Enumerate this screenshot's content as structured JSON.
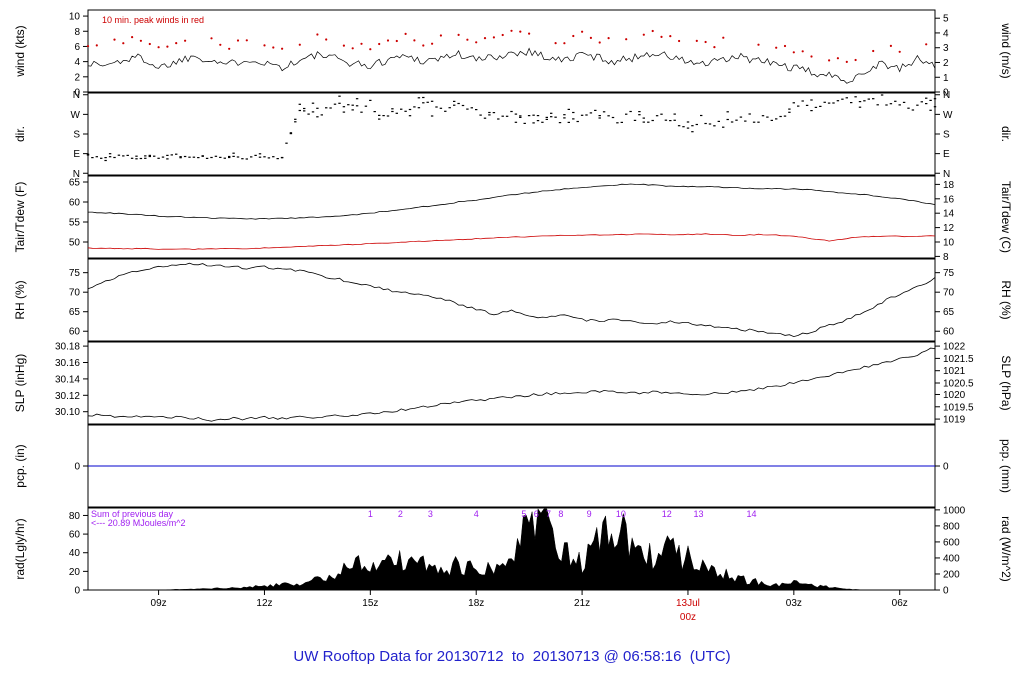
{
  "title": "UW Rooftop Data for 20130712  to  20130713 @ 06:58:16  (UTC)",
  "colors": {
    "title": "#2222cc",
    "red": "#cc0000",
    "purple": "#a020f0",
    "blue": "#0000cc",
    "black": "#000000"
  },
  "x_axis": {
    "domain_hours": [
      0,
      24
    ],
    "ticks": [
      {
        "t": 2,
        "l": "09z"
      },
      {
        "t": 5,
        "l": "12z"
      },
      {
        "t": 8,
        "l": "15z"
      },
      {
        "t": 11,
        "l": "18z"
      },
      {
        "t": 14,
        "l": "21z"
      },
      {
        "t": 17,
        "l": "13Jul",
        "l2": "00z",
        "color": "#cc0000"
      },
      {
        "t": 20,
        "l": "03z"
      },
      {
        "t": 23,
        "l": "06z"
      }
    ]
  },
  "chart_data": [
    {
      "id": "wind",
      "type": "line",
      "left_label": "wind (kts)",
      "right_label": "wind (m/s)",
      "y_domain": [
        0,
        10.8
      ],
      "left_ticks": [
        {
          "v": 0,
          "l": "0"
        },
        {
          "v": 2,
          "l": "2"
        },
        {
          "v": 4,
          "l": "4"
        },
        {
          "v": 6,
          "l": "6"
        },
        {
          "v": 8,
          "l": "8"
        },
        {
          "v": 10,
          "l": "10"
        }
      ],
      "right_ticks": [
        {
          "v": 0,
          "l": "0"
        },
        {
          "v": 1.94,
          "l": "1"
        },
        {
          "v": 3.89,
          "l": "2"
        },
        {
          "v": 5.83,
          "l": "3"
        },
        {
          "v": 7.78,
          "l": "4"
        },
        {
          "v": 9.72,
          "l": "5"
        }
      ],
      "note": {
        "text": "10 min. peak winds in red",
        "color": "#cc0000"
      },
      "series": [
        {
          "name": "wind-speed",
          "color": "#000000",
          "step_hours": 0.5,
          "values": [
            3.8,
            3.5,
            4.2,
            4.6,
            3.2,
            4.0,
            4.8,
            4.2,
            3.6,
            4.4,
            3.9,
            3.3,
            4.1,
            4.9,
            4.4,
            3.8,
            3.4,
            4.3,
            4.8,
            4.1,
            4.5,
            5.0,
            4.2,
            4.6,
            5.1,
            5.4,
            4.6,
            4.1,
            5.0,
            4.5,
            4.0,
            4.6,
            5.2,
            4.6,
            4.0,
            3.6,
            4.2,
            4.6,
            4.1,
            3.7,
            3.1,
            2.6,
            2.1,
            1.6,
            2.6,
            3.9,
            2.9,
            4.4,
            3.4
          ]
        }
      ],
      "peaks": {
        "name": "peak-winds",
        "color": "#cc0000",
        "step_hours": 0.5,
        "values": [
          6.2,
          6.0,
          6.8,
          7.1,
          5.6,
          6.5,
          7.3,
          6.7,
          6.0,
          6.9,
          6.3,
          5.8,
          6.6,
          7.4,
          6.9,
          6.2,
          5.9,
          6.8,
          7.3,
          6.6,
          7.0,
          7.6,
          6.7,
          7.1,
          7.7,
          8.1,
          7.1,
          6.6,
          7.6,
          7.0,
          6.5,
          7.1,
          7.8,
          7.1,
          6.5,
          6.1,
          6.7,
          7.1,
          6.6,
          6.2,
          5.5,
          5.0,
          4.4,
          3.9,
          5.1,
          6.4,
          5.4,
          7.0,
          5.9
        ]
      }
    },
    {
      "id": "dir",
      "type": "scatter",
      "left_label": "dir.",
      "right_label": "dir.",
      "y_domain": [
        -8,
        368
      ],
      "left_ticks": [
        {
          "v": 0,
          "l": "N"
        },
        {
          "v": 90,
          "l": "E"
        },
        {
          "v": 180,
          "l": "S"
        },
        {
          "v": 270,
          "l": "W"
        },
        {
          "v": 360,
          "l": "N"
        }
      ],
      "right_ticks": [
        {
          "v": 0,
          "l": "N"
        },
        {
          "v": 90,
          "l": "E"
        },
        {
          "v": 180,
          "l": "S"
        },
        {
          "v": 270,
          "l": "W"
        },
        {
          "v": 360,
          "l": "N"
        }
      ],
      "series": [
        {
          "name": "wind-direction",
          "color": "#000000",
          "step_hours": 0.5,
          "values": [
            80,
            74,
            78,
            72,
            76,
            80,
            75,
            70,
            77,
            73,
            79,
            75,
            300,
            280,
            320,
            290,
            310,
            270,
            300,
            330,
            285,
            305,
            270,
            255,
            265,
            250,
            260,
            245,
            255,
            265,
            250,
            260,
            240,
            250,
            230,
            245,
            235,
            255,
            240,
            250,
            310,
            330,
            320,
            340,
            315,
            335,
            300,
            320,
            330
          ]
        }
      ]
    },
    {
      "id": "temp",
      "type": "line",
      "left_label": "Tair/Tdew (F)",
      "right_label": "Tair/Tdew (C)",
      "y_domain": [
        46,
        66.5
      ],
      "left_ticks": [
        {
          "v": 50,
          "l": "50"
        },
        {
          "v": 55,
          "l": "55"
        },
        {
          "v": 60,
          "l": "60"
        },
        {
          "v": 65,
          "l": "65"
        }
      ],
      "right_ticks": [
        {
          "v": 46.4,
          "l": "8"
        },
        {
          "v": 50,
          "l": "10"
        },
        {
          "v": 53.6,
          "l": "12"
        },
        {
          "v": 57.2,
          "l": "14"
        },
        {
          "v": 60.8,
          "l": "16"
        },
        {
          "v": 64.4,
          "l": "18"
        }
      ],
      "series": [
        {
          "name": "air-temperature",
          "color": "#000000",
          "step_hours": 0.5,
          "values": [
            57.5,
            57.3,
            57.0,
            56.8,
            56.5,
            56.3,
            56.2,
            56.0,
            55.9,
            55.8,
            55.8,
            55.9,
            56.0,
            56.2,
            56.5,
            56.8,
            57.2,
            57.8,
            58.3,
            58.8,
            59.4,
            60.0,
            60.5,
            61.2,
            61.8,
            62.3,
            62.8,
            63.2,
            63.6,
            64.0,
            64.3,
            64.5,
            64.2,
            64.0,
            63.8,
            63.9,
            63.7,
            63.5,
            63.4,
            63.3,
            63.2,
            63.0,
            62.6,
            62.2,
            61.8,
            61.3,
            60.8,
            60.2,
            59.3
          ]
        },
        {
          "name": "dew-point",
          "color": "#cc0000",
          "step_hours": 0.5,
          "values": [
            48.5,
            48.4,
            48.3,
            48.4,
            48.2,
            48.3,
            48.2,
            48.3,
            48.4,
            48.3,
            48.5,
            48.6,
            48.8,
            49.0,
            49.2,
            49.4,
            49.6,
            49.8,
            50.0,
            50.2,
            50.4,
            50.6,
            50.8,
            51.0,
            51.2,
            51.3,
            51.5,
            51.6,
            51.7,
            51.8,
            51.8,
            51.9,
            52.0,
            51.8,
            51.9,
            52.0,
            51.8,
            51.6,
            51.9,
            51.7,
            51.5,
            50.8,
            50.3,
            50.9,
            51.3,
            51.5,
            51.4,
            51.5,
            51.6
          ]
        }
      ]
    },
    {
      "id": "rh",
      "type": "line",
      "left_label": "RH (%)",
      "right_label": "RH (%)",
      "y_domain": [
        57.5,
        78.5
      ],
      "left_ticks": [
        {
          "v": 60,
          "l": "60"
        },
        {
          "v": 65,
          "l": "65"
        },
        {
          "v": 70,
          "l": "70"
        },
        {
          "v": 75,
          "l": "75"
        }
      ],
      "right_ticks": [
        {
          "v": 60,
          "l": "60"
        },
        {
          "v": 65,
          "l": "65"
        },
        {
          "v": 70,
          "l": "70"
        },
        {
          "v": 75,
          "l": "75"
        }
      ],
      "series": [
        {
          "name": "relative-humidity",
          "color": "#000000",
          "step_hours": 0.5,
          "values": [
            71.0,
            73.0,
            74.5,
            75.5,
            76.5,
            77.0,
            77.2,
            76.8,
            76.5,
            76.2,
            76.5,
            76.0,
            75.5,
            74.5,
            73.5,
            72.5,
            71.5,
            70.5,
            70.0,
            69.5,
            68.5,
            67.0,
            65.5,
            64.5,
            65.5,
            64.0,
            63.5,
            64.5,
            63.0,
            62.5,
            63.0,
            62.5,
            62.0,
            62.5,
            62.0,
            61.5,
            61.0,
            60.5,
            60.0,
            59.5,
            58.8,
            60.0,
            61.5,
            63.0,
            65.0,
            67.5,
            69.5,
            71.5,
            73.5
          ]
        }
      ]
    },
    {
      "id": "slp",
      "type": "line",
      "left_label": "SLP (inHg)",
      "right_label": "SLP (hPa)",
      "y_domain": [
        30.085,
        30.185
      ],
      "left_ticks": [
        {
          "v": 30.1,
          "l": "30.10"
        },
        {
          "v": 30.12,
          "l": "30.12"
        },
        {
          "v": 30.14,
          "l": "30.14"
        },
        {
          "v": 30.16,
          "l": "30.16"
        },
        {
          "v": 30.18,
          "l": "30.18"
        }
      ],
      "right_ticks": [
        {
          "v": 30.091,
          "l": "1019"
        },
        {
          "v": 30.106,
          "l": "1019.5"
        },
        {
          "v": 30.121,
          "l": "1020"
        },
        {
          "v": 30.135,
          "l": "1020.5"
        },
        {
          "v": 30.15,
          "l": "1021"
        },
        {
          "v": 30.165,
          "l": "1021.5"
        },
        {
          "v": 30.18,
          "l": "1022"
        }
      ],
      "series": [
        {
          "name": "sea-level-pressure",
          "color": "#000000",
          "step_hours": 0.5,
          "values": [
            30.096,
            30.095,
            30.094,
            30.095,
            30.093,
            30.094,
            30.092,
            30.09,
            30.092,
            30.091,
            30.093,
            30.092,
            30.094,
            30.093,
            30.095,
            30.096,
            30.098,
            30.1,
            30.103,
            30.106,
            30.109,
            30.112,
            30.114,
            30.116,
            30.118,
            30.12,
            30.122,
            30.123,
            30.124,
            30.125,
            30.124,
            30.123,
            30.124,
            30.122,
            30.121,
            30.122,
            30.123,
            30.125,
            30.128,
            30.131,
            30.135,
            30.139,
            30.144,
            30.149,
            30.154,
            30.159,
            30.164,
            30.17,
            30.178
          ]
        }
      ]
    },
    {
      "id": "pcp",
      "type": "line",
      "left_label": "pcp. (in)",
      "right_label": "pcp. (mm)",
      "y_domain": [
        -1,
        1
      ],
      "left_ticks": [
        {
          "v": 0,
          "l": "0"
        }
      ],
      "right_ticks": [
        {
          "v": 0,
          "l": "0"
        }
      ],
      "series": [
        {
          "name": "precipitation",
          "color": "#0000cc",
          "step_hours": 24,
          "values": [
            0,
            0
          ]
        }
      ]
    },
    {
      "id": "rad",
      "type": "area",
      "left_label": "rad(Lgly/hr)",
      "right_label": "rad (W/m^2)",
      "y_domain": [
        0,
        88
      ],
      "left_ticks": [
        {
          "v": 0,
          "l": "0"
        },
        {
          "v": 20,
          "l": "20"
        },
        {
          "v": 40,
          "l": "40"
        },
        {
          "v": 60,
          "l": "60"
        },
        {
          "v": 80,
          "l": "80"
        }
      ],
      "right_ticks": [
        {
          "v": 0,
          "l": "0"
        },
        {
          "v": 17.2,
          "l": "200"
        },
        {
          "v": 34.4,
          "l": "400"
        },
        {
          "v": 51.6,
          "l": "600"
        },
        {
          "v": 68.8,
          "l": "800"
        },
        {
          "v": 86.0,
          "l": "1000"
        }
      ],
      "notes": {
        "line1": "Sum of previous day",
        "line2": "<--- 20.89 MJoules/m^2",
        "color": "#a020f0"
      },
      "hour_markers": {
        "color": "#a020f0",
        "items": [
          {
            "t": 8.0,
            "l": "1"
          },
          {
            "t": 8.85,
            "l": "2"
          },
          {
            "t": 9.7,
            "l": "3"
          },
          {
            "t": 11.0,
            "l": "4"
          },
          {
            "t": 12.35,
            "l": "5"
          },
          {
            "t": 12.7,
            "l": "6"
          },
          {
            "t": 13.05,
            "l": "7"
          },
          {
            "t": 13.4,
            "l": "8"
          },
          {
            "t": 14.2,
            "l": "9"
          },
          {
            "t": 15.1,
            "l": "10"
          },
          {
            "t": 16.4,
            "l": "12"
          },
          {
            "t": 17.3,
            "l": "13"
          },
          {
            "t": 18.8,
            "l": "14"
          }
        ]
      },
      "series": [
        {
          "name": "solar-radiation",
          "color": "#000000",
          "step_hours": 0.5,
          "values": [
            0,
            0,
            0,
            0,
            0,
            0.5,
            1,
            1.5,
            2,
            3,
            4,
            6,
            8,
            12,
            18,
            25,
            35,
            30,
            38,
            28,
            22,
            26,
            24,
            28,
            35,
            75,
            80,
            45,
            30,
            55,
            60,
            50,
            40,
            45,
            35,
            25,
            18,
            12,
            8,
            6,
            8,
            5,
            3,
            1,
            0,
            0,
            0,
            0,
            0
          ]
        }
      ]
    }
  ]
}
